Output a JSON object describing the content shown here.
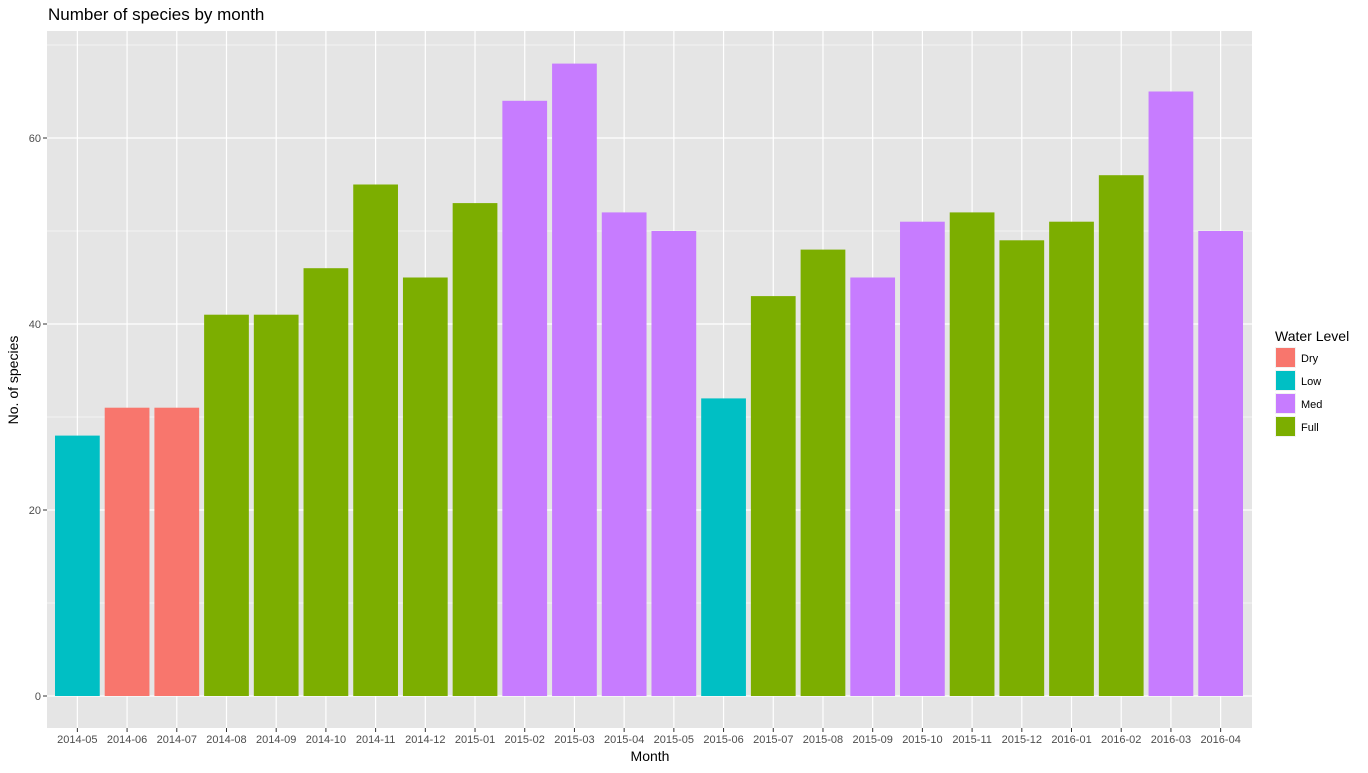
{
  "chart_data": {
    "type": "bar",
    "title": "Number of species by month",
    "xlabel": "Month",
    "ylabel": "No. of species",
    "ylim": [
      0,
      70
    ],
    "yticks": [
      0,
      20,
      40,
      60
    ],
    "grid": true,
    "categories": [
      "2014-05",
      "2014-06",
      "2014-07",
      "2014-08",
      "2014-09",
      "2014-10",
      "2014-11",
      "2014-12",
      "2015-01",
      "2015-02",
      "2015-03",
      "2015-04",
      "2015-05",
      "2015-06",
      "2015-07",
      "2015-08",
      "2015-09",
      "2015-10",
      "2015-11",
      "2015-12",
      "2016-01",
      "2016-02",
      "2016-03",
      "2016-04"
    ],
    "values": [
      28,
      31,
      31,
      41,
      41,
      46,
      55,
      45,
      53,
      64,
      68,
      52,
      50,
      32,
      43,
      48,
      45,
      51,
      52,
      49,
      51,
      56,
      65,
      50
    ],
    "groups": [
      "Low",
      "Dry",
      "Dry",
      "Full",
      "Full",
      "Full",
      "Full",
      "Full",
      "Full",
      "Med",
      "Med",
      "Med",
      "Med",
      "Low",
      "Full",
      "Full",
      "Med",
      "Med",
      "Full",
      "Full",
      "Full",
      "Full",
      "Med",
      "Med"
    ],
    "legend": {
      "title": "Water Level",
      "placement": "right",
      "entries": [
        {
          "label": "Dry",
          "color": "#F8766D"
        },
        {
          "label": "Low",
          "color": "#00BFC4"
        },
        {
          "label": "Med",
          "color": "#C77CFF"
        },
        {
          "label": "Full",
          "color": "#7CAE00"
        }
      ]
    },
    "colors": {
      "panel_background": "#e5e5e5",
      "grid_line": "#ffffff"
    }
  }
}
